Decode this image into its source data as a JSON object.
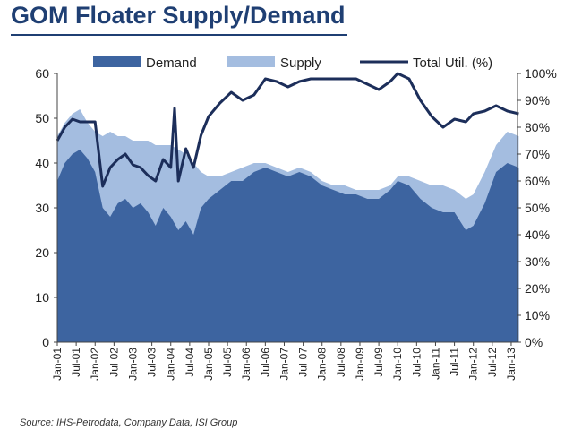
{
  "title": "GOM Floater Supply/Demand",
  "source": "Source: IHS-Petrodata, Company Data, ISI Group",
  "chart_data": {
    "type": "area",
    "legend_placement": "top",
    "grid": false,
    "x_tick_labels": [
      "Jan-01",
      "Jul-01",
      "Jan-02",
      "Jul-02",
      "Jan-03",
      "Jul-03",
      "Jan-04",
      "Jul-04",
      "Jan-05",
      "Jul-05",
      "Jan-06",
      "Jul-06",
      "Jan-07",
      "Jul-07",
      "Jan-08",
      "Jul-08",
      "Jan-09",
      "Jul-09",
      "Jan-10",
      "Jul-10",
      "Jan-11",
      "Jul-11",
      "Jan-12",
      "Jul-12",
      "Jan-13"
    ],
    "x_range": [
      "Jan-01",
      "Mar-13"
    ],
    "y_left": {
      "range": [
        0,
        60
      ],
      "ticks": [
        "0",
        "10",
        "20",
        "30",
        "40",
        "50",
        "60"
      ]
    },
    "y_right": {
      "range": [
        0,
        100
      ],
      "unit": "%",
      "ticks": [
        "0%",
        "10%",
        "20%",
        "30%",
        "40%",
        "50%",
        "60%",
        "70%",
        "80%",
        "90%",
        "100%"
      ]
    },
    "colors": {
      "demand": "#3d64a0",
      "supply": "#a4bde0",
      "utilization": "#1c2e5a",
      "text": "#222222"
    },
    "series": [
      {
        "name": "Demand",
        "kind": "area",
        "axis": "left",
        "points": [
          [
            "2001.0",
            36
          ],
          [
            "2001.2",
            40
          ],
          [
            "2001.4",
            42
          ],
          [
            "2001.6",
            43
          ],
          [
            "2001.8",
            41
          ],
          [
            "2002.0",
            38
          ],
          [
            "2002.2",
            30
          ],
          [
            "2002.4",
            28
          ],
          [
            "2002.6",
            31
          ],
          [
            "2002.8",
            32
          ],
          [
            "2003.0",
            30
          ],
          [
            "2003.2",
            31
          ],
          [
            "2003.4",
            29
          ],
          [
            "2003.6",
            26
          ],
          [
            "2003.8",
            30
          ],
          [
            "2004.0",
            28
          ],
          [
            "2004.2",
            25
          ],
          [
            "2004.4",
            27
          ],
          [
            "2004.6",
            24
          ],
          [
            "2004.8",
            30
          ],
          [
            "2005.0",
            32
          ],
          [
            "2005.3",
            34
          ],
          [
            "2005.6",
            36
          ],
          [
            "2005.9",
            36
          ],
          [
            "2006.2",
            38
          ],
          [
            "2006.5",
            39
          ],
          [
            "2006.8",
            38
          ],
          [
            "2007.1",
            37
          ],
          [
            "2007.4",
            38
          ],
          [
            "2007.7",
            37
          ],
          [
            "2008.0",
            35
          ],
          [
            "2008.3",
            34
          ],
          [
            "2008.6",
            33
          ],
          [
            "2008.9",
            33
          ],
          [
            "2009.2",
            32
          ],
          [
            "2009.5",
            32
          ],
          [
            "2009.8",
            34
          ],
          [
            "2010.0",
            36
          ],
          [
            "2010.3",
            35
          ],
          [
            "2010.6",
            32
          ],
          [
            "2010.9",
            30
          ],
          [
            "2011.2",
            29
          ],
          [
            "2011.5",
            29
          ],
          [
            "2011.8",
            25
          ],
          [
            "2012.0",
            26
          ],
          [
            "2012.3",
            31
          ],
          [
            "2012.6",
            38
          ],
          [
            "2012.9",
            40
          ],
          [
            "2013.2",
            39
          ]
        ]
      },
      {
        "name": "Supply",
        "kind": "area",
        "axis": "left",
        "points": [
          [
            "2001.0",
            46
          ],
          [
            "2001.2",
            49
          ],
          [
            "2001.4",
            51
          ],
          [
            "2001.6",
            52
          ],
          [
            "2001.8",
            49
          ],
          [
            "2002.0",
            47
          ],
          [
            "2002.2",
            46
          ],
          [
            "2002.4",
            47
          ],
          [
            "2002.6",
            46
          ],
          [
            "2002.8",
            46
          ],
          [
            "2003.0",
            45
          ],
          [
            "2003.2",
            45
          ],
          [
            "2003.4",
            45
          ],
          [
            "2003.6",
            44
          ],
          [
            "2003.8",
            44
          ],
          [
            "2004.0",
            44
          ],
          [
            "2004.2",
            43
          ],
          [
            "2004.4",
            42
          ],
          [
            "2004.6",
            40
          ],
          [
            "2004.8",
            38
          ],
          [
            "2005.0",
            37
          ],
          [
            "2005.3",
            37
          ],
          [
            "2005.6",
            38
          ],
          [
            "2005.9",
            39
          ],
          [
            "2006.2",
            40
          ],
          [
            "2006.5",
            40
          ],
          [
            "2006.8",
            39
          ],
          [
            "2007.1",
            38
          ],
          [
            "2007.4",
            39
          ],
          [
            "2007.7",
            38
          ],
          [
            "2008.0",
            36
          ],
          [
            "2008.3",
            35
          ],
          [
            "2008.6",
            35
          ],
          [
            "2008.9",
            34
          ],
          [
            "2009.2",
            34
          ],
          [
            "2009.5",
            34
          ],
          [
            "2009.8",
            35
          ],
          [
            "2010.0",
            37
          ],
          [
            "2010.3",
            37
          ],
          [
            "2010.6",
            36
          ],
          [
            "2010.9",
            35
          ],
          [
            "2011.2",
            35
          ],
          [
            "2011.5",
            34
          ],
          [
            "2011.8",
            32
          ],
          [
            "2012.0",
            33
          ],
          [
            "2012.3",
            38
          ],
          [
            "2012.6",
            44
          ],
          [
            "2012.9",
            47
          ],
          [
            "2013.2",
            46
          ]
        ]
      },
      {
        "name": "Total Util. (%)",
        "kind": "line",
        "axis": "right",
        "points": [
          [
            "2001.0",
            75
          ],
          [
            "2001.2",
            80
          ],
          [
            "2001.4",
            83
          ],
          [
            "2001.6",
            82
          ],
          [
            "2001.8",
            82
          ],
          [
            "2002.0",
            82
          ],
          [
            "2002.2",
            58
          ],
          [
            "2002.4",
            65
          ],
          [
            "2002.6",
            68
          ],
          [
            "2002.8",
            70
          ],
          [
            "2003.0",
            66
          ],
          [
            "2003.2",
            65
          ],
          [
            "2003.4",
            62
          ],
          [
            "2003.6",
            60
          ],
          [
            "2003.8",
            68
          ],
          [
            "2004.0",
            65
          ],
          [
            "2004.1",
            87
          ],
          [
            "2004.2",
            60
          ],
          [
            "2004.4",
            72
          ],
          [
            "2004.6",
            65
          ],
          [
            "2004.8",
            77
          ],
          [
            "2005.0",
            84
          ],
          [
            "2005.3",
            89
          ],
          [
            "2005.6",
            93
          ],
          [
            "2005.9",
            90
          ],
          [
            "2006.2",
            92
          ],
          [
            "2006.5",
            98
          ],
          [
            "2006.8",
            97
          ],
          [
            "2007.1",
            95
          ],
          [
            "2007.4",
            97
          ],
          [
            "2007.7",
            98
          ],
          [
            "2008.0",
            98
          ],
          [
            "2008.3",
            98
          ],
          [
            "2008.6",
            98
          ],
          [
            "2008.9",
            98
          ],
          [
            "2009.2",
            96
          ],
          [
            "2009.5",
            94
          ],
          [
            "2009.8",
            97
          ],
          [
            "2010.0",
            100
          ],
          [
            "2010.3",
            98
          ],
          [
            "2010.6",
            90
          ],
          [
            "2010.9",
            84
          ],
          [
            "2011.2",
            80
          ],
          [
            "2011.5",
            83
          ],
          [
            "2011.8",
            82
          ],
          [
            "2012.0",
            85
          ],
          [
            "2012.3",
            86
          ],
          [
            "2012.6",
            88
          ],
          [
            "2012.9",
            86
          ],
          [
            "2013.2",
            85
          ]
        ]
      }
    ]
  }
}
